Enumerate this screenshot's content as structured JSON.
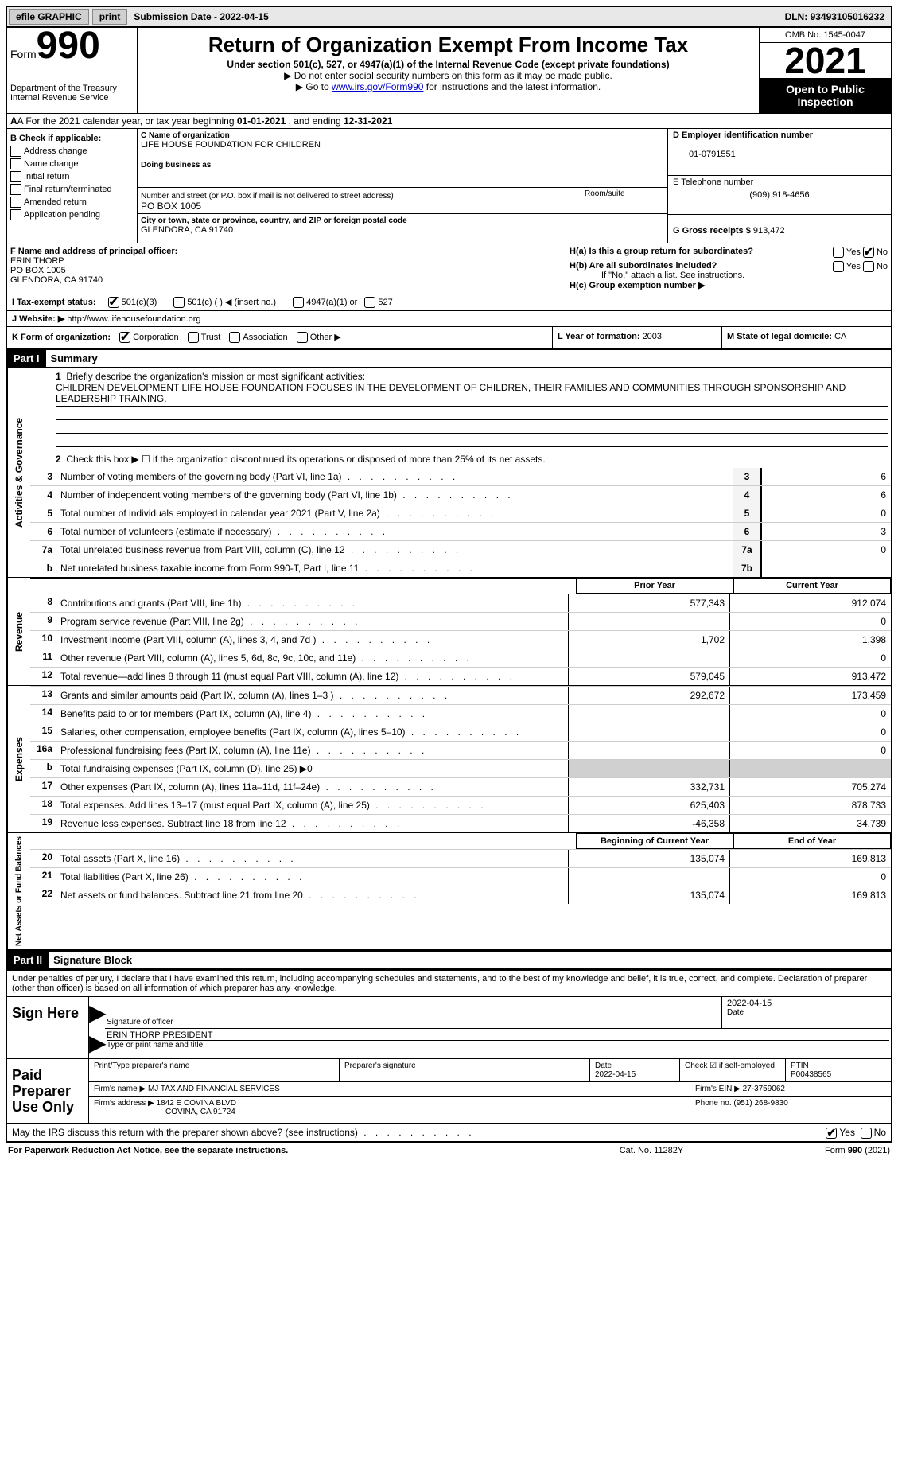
{
  "topbar": {
    "efile": "efile GRAPHIC",
    "print": "print",
    "submission_label": "Submission Date - ",
    "submission_date": "2022-04-15",
    "dln_label": "DLN: ",
    "dln": "93493105016232"
  },
  "header": {
    "form_word": "Form",
    "form_num": "990",
    "dept": "Department of the Treasury",
    "irs": "Internal Revenue Service",
    "title": "Return of Organization Exempt From Income Tax",
    "sub1": "Under section 501(c), 527, or 4947(a)(1) of the Internal Revenue Code (except private foundations)",
    "sub2_pre": "▶ Do not enter social security numbers on this form as it may be made public.",
    "sub3_pre": "▶ Go to ",
    "sub3_link": "www.irs.gov/Form990",
    "sub3_post": " for instructions and the latest information.",
    "omb": "OMB No. 1545-0047",
    "year": "2021",
    "open": "Open to Public Inspection"
  },
  "rowA": {
    "text_pre": "A For the 2021 calendar year, or tax year beginning ",
    "begin": "01-01-2021",
    "mid": "   , and ending ",
    "end": "12-31-2021"
  },
  "colB": {
    "label": "B Check if applicable:",
    "items": [
      "Address change",
      "Name change",
      "Initial return",
      "Final return/terminated",
      "Amended return",
      "Application pending"
    ]
  },
  "colC": {
    "name_lbl": "C Name of organization",
    "name": "LIFE HOUSE FOUNDATION FOR CHILDREN",
    "dba_lbl": "Doing business as",
    "dba": "",
    "addr_lbl": "Number and street (or P.O. box if mail is not delivered to street address)",
    "addr": "PO BOX 1005",
    "room_lbl": "Room/suite",
    "city_lbl": "City or town, state or province, country, and ZIP or foreign postal code",
    "city": "GLENDORA, CA  91740"
  },
  "colD": {
    "ein_lbl": "D Employer identification number",
    "ein": "01-0791551",
    "phone_lbl": "E Telephone number",
    "phone": "(909) 918-4656",
    "gross_lbl": "G Gross receipts $ ",
    "gross": "913,472"
  },
  "rowF": {
    "lbl": "F  Name and address of principal officer:",
    "name": "ERIN THORP",
    "addr1": "PO BOX 1005",
    "addr2": "GLENDORA, CA  91740"
  },
  "rowH": {
    "ha": "H(a)  Is this a group return for subordinates?",
    "hb": "H(b)  Are all subordinates included?",
    "hb_note": "If \"No,\" attach a list. See instructions.",
    "hc": "H(c)  Group exemption number ▶",
    "yes": "Yes",
    "no": "No"
  },
  "rowI": {
    "lbl": "I    Tax-exempt status:",
    "o1": "501(c)(3)",
    "o2": "501(c) (  ) ◀ (insert no.)",
    "o3": "4947(a)(1) or",
    "o4": "527"
  },
  "rowJ": {
    "lbl": "J   Website: ▶ ",
    "val": "http://www.lifehousefoundation.org"
  },
  "rowK": {
    "lbl": "K Form of organization:",
    "o1": "Corporation",
    "o2": "Trust",
    "o3": "Association",
    "o4": "Other ▶"
  },
  "rowL": {
    "lbl": "L Year of formation: ",
    "val": "2003"
  },
  "rowM": {
    "lbl": "M State of legal domicile: ",
    "val": "CA"
  },
  "part1": {
    "hdr": "Part I",
    "title": "Summary",
    "q1_lbl": "Briefly describe the organization's mission or most significant activities:",
    "q1_val": "CHILDREN DEVELOPMENT LIFE HOUSE FOUNDATION FOCUSES IN THE DEVELOPMENT OF CHILDREN, THEIR FAMILIES AND COMMUNITIES THROUGH SPONSORSHIP AND LEADERSHIP TRAINING.",
    "q2": "Check this box ▶ ☐  if the organization discontinued its operations or disposed of more than 25% of its net assets.",
    "lines_a": [
      {
        "n": "3",
        "d": "Number of voting members of the governing body (Part VI, line 1a)",
        "box": "3",
        "v": "6"
      },
      {
        "n": "4",
        "d": "Number of independent voting members of the governing body (Part VI, line 1b)",
        "box": "4",
        "v": "6"
      },
      {
        "n": "5",
        "d": "Total number of individuals employed in calendar year 2021 (Part V, line 2a)",
        "box": "5",
        "v": "0"
      },
      {
        "n": "6",
        "d": "Total number of volunteers (estimate if necessary)",
        "box": "6",
        "v": "3"
      },
      {
        "n": "7a",
        "d": "Total unrelated business revenue from Part VIII, column (C), line 12",
        "box": "7a",
        "v": "0"
      },
      {
        "n": "b",
        "d": "Net unrelated business taxable income from Form 990-T, Part I, line 11",
        "box": "7b",
        "v": ""
      }
    ],
    "hdr_prior": "Prior Year",
    "hdr_current": "Current Year",
    "revenue": [
      {
        "n": "8",
        "d": "Contributions and grants (Part VIII, line 1h)",
        "p": "577,343",
        "c": "912,074"
      },
      {
        "n": "9",
        "d": "Program service revenue (Part VIII, line 2g)",
        "p": "",
        "c": "0"
      },
      {
        "n": "10",
        "d": "Investment income (Part VIII, column (A), lines 3, 4, and 7d )",
        "p": "1,702",
        "c": "1,398"
      },
      {
        "n": "11",
        "d": "Other revenue (Part VIII, column (A), lines 5, 6d, 8c, 9c, 10c, and 11e)",
        "p": "",
        "c": "0"
      },
      {
        "n": "12",
        "d": "Total revenue—add lines 8 through 11 (must equal Part VIII, column (A), line 12)",
        "p": "579,045",
        "c": "913,472"
      }
    ],
    "expenses": [
      {
        "n": "13",
        "d": "Grants and similar amounts paid (Part IX, column (A), lines 1–3 )",
        "p": "292,672",
        "c": "173,459"
      },
      {
        "n": "14",
        "d": "Benefits paid to or for members (Part IX, column (A), line 4)",
        "p": "",
        "c": "0"
      },
      {
        "n": "15",
        "d": "Salaries, other compensation, employee benefits (Part IX, column (A), lines 5–10)",
        "p": "",
        "c": "0"
      },
      {
        "n": "16a",
        "d": "Professional fundraising fees (Part IX, column (A), line 11e)",
        "p": "",
        "c": "0"
      },
      {
        "n": "b",
        "d": "Total fundraising expenses (Part IX, column (D), line 25) ▶0",
        "p": "SHADE",
        "c": "SHADE"
      },
      {
        "n": "17",
        "d": "Other expenses (Part IX, column (A), lines 11a–11d, 11f–24e)",
        "p": "332,731",
        "c": "705,274"
      },
      {
        "n": "18",
        "d": "Total expenses. Add lines 13–17 (must equal Part IX, column (A), line 25)",
        "p": "625,403",
        "c": "878,733"
      },
      {
        "n": "19",
        "d": "Revenue less expenses. Subtract line 18 from line 12",
        "p": "-46,358",
        "c": "34,739"
      }
    ],
    "hdr_begin": "Beginning of Current Year",
    "hdr_end": "End of Year",
    "netassets": [
      {
        "n": "20",
        "d": "Total assets (Part X, line 16)",
        "p": "135,074",
        "c": "169,813"
      },
      {
        "n": "21",
        "d": "Total liabilities (Part X, line 26)",
        "p": "",
        "c": "0"
      },
      {
        "n": "22",
        "d": "Net assets or fund balances. Subtract line 21 from line 20",
        "p": "135,074",
        "c": "169,813"
      }
    ],
    "side_ag": "Activities & Governance",
    "side_rev": "Revenue",
    "side_exp": "Expenses",
    "side_net": "Net Assets or Fund Balances"
  },
  "part2": {
    "hdr": "Part II",
    "title": "Signature Block",
    "decl": "Under penalties of perjury, I declare that I have examined this return, including accompanying schedules and statements, and to the best of my knowledge and belief, it is true, correct, and complete. Declaration of preparer (other than officer) is based on all information of which preparer has any knowledge.",
    "sign_here": "Sign Here",
    "sig_officer": "Signature of officer",
    "sig_date": "2022-04-15",
    "date_lbl": "Date",
    "name_title": "ERIN THORP  PRESIDENT",
    "name_title_lbl": "Type or print name and title",
    "paid": "Paid Preparer Use Only",
    "prep_name_lbl": "Print/Type preparer's name",
    "prep_sig_lbl": "Preparer's signature",
    "prep_date_lbl": "Date",
    "prep_date": "2022-04-15",
    "self_emp": "Check ☑ if self-employed",
    "ptin_lbl": "PTIN",
    "ptin": "P00438565",
    "firm_name_lbl": "Firm's name   ▶ ",
    "firm_name": "MJ TAX AND FINANCIAL SERVICES",
    "firm_ein_lbl": "Firm's EIN ▶ ",
    "firm_ein": "27-3759062",
    "firm_addr_lbl": "Firm's address ▶ ",
    "firm_addr1": "1842 E COVINA BLVD",
    "firm_addr2": "COVINA, CA  91724",
    "firm_phone_lbl": "Phone no. ",
    "firm_phone": "(951) 268-9830",
    "may_irs": "May the IRS discuss this return with the preparer shown above? (see instructions)",
    "yes": "Yes",
    "no": "No"
  },
  "footer": {
    "l": "For Paperwork Reduction Act Notice, see the separate instructions.",
    "c": "Cat. No. 11282Y",
    "r": "Form 990 (2021)"
  }
}
